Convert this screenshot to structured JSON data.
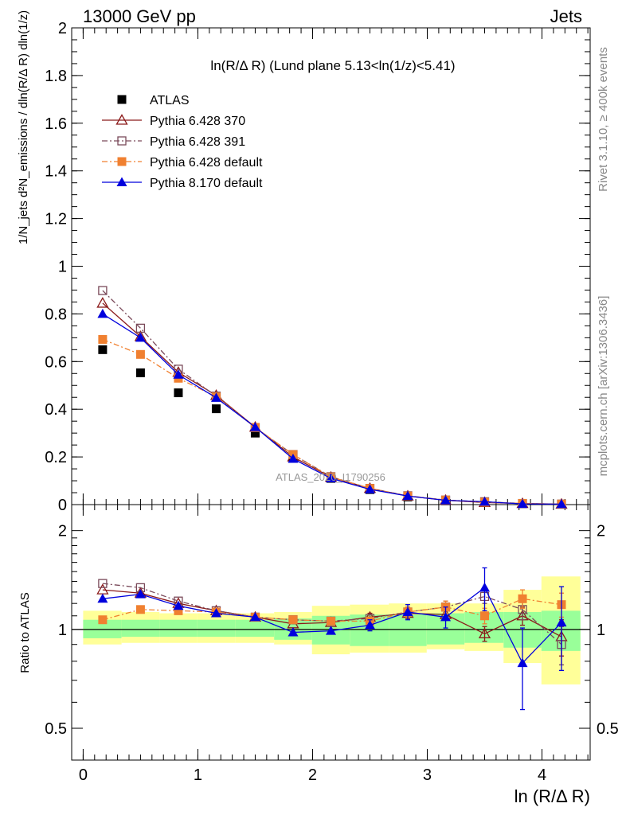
{
  "header": {
    "left": "13000 GeV pp",
    "right": "Jets"
  },
  "side_labels": {
    "top": "Rivet 3.1.10, ≥ 400k events",
    "bottom": "mcplots.cern.ch [arXiv:1306.3436]"
  },
  "watermark": "ATLAS_2020_I1790256",
  "chart_data": [
    {
      "type": "scatter",
      "panel": "main",
      "title": "ln(R/Δ R) (Lund plane 5.13<ln(1/z)<5.41)",
      "ylabel": "1/N_jets d²N_emissions / dln(R/Δ R) dln(1/z)",
      "xlim": [
        -0.1,
        4.42
      ],
      "ylim": [
        0,
        2.0
      ],
      "y_ticks": [
        "0",
        "0.2",
        "0.4",
        "0.6",
        "0.8",
        "1",
        "1.2",
        "1.4",
        "1.6",
        "1.8",
        "2"
      ],
      "x": [
        0.17,
        0.5,
        0.83,
        1.16,
        1.5,
        1.83,
        2.16,
        2.5,
        2.83,
        3.16,
        3.5,
        3.83,
        4.17
      ],
      "legend": "top-left",
      "series": [
        {
          "name": "ATLAS",
          "color": "#000000",
          "marker": "square-filled",
          "line": "none",
          "values": [
            0.65,
            0.553,
            0.469,
            0.402,
            0.3,
            0.195,
            0.11,
            0.063,
            0.032,
            0.016,
            0.009,
            0.004,
            0.002
          ]
        },
        {
          "name": "Pythia 6.428 370",
          "color": "#8b1a1a",
          "marker": "triangle-open",
          "line": "solid",
          "values": [
            0.845,
            0.705,
            0.555,
            0.458,
            0.325,
            0.2,
            0.115,
            0.068,
            0.036,
            0.018,
            0.009,
            0.0045,
            0.0019
          ]
        },
        {
          "name": "Pythia 6.428 391",
          "color": "#7a4a5a",
          "marker": "square-open",
          "line": "dashdot",
          "values": [
            0.898,
            0.74,
            0.568,
            0.455,
            0.323,
            0.21,
            0.117,
            0.068,
            0.037,
            0.019,
            0.012,
            0.0047,
            0.0018
          ]
        },
        {
          "name": "Pythia 6.428 default",
          "color": "#f08030",
          "marker": "square-filled",
          "line": "dashdot",
          "values": [
            0.693,
            0.63,
            0.53,
            0.452,
            0.324,
            0.21,
            0.116,
            0.068,
            0.036,
            0.019,
            0.01,
            0.005,
            0.0024
          ]
        },
        {
          "name": "Pythia 8.170 default",
          "color": "#0000dd",
          "marker": "triangle-filled",
          "line": "solid",
          "values": [
            0.8,
            0.7,
            0.545,
            0.448,
            0.325,
            0.192,
            0.11,
            0.064,
            0.036,
            0.018,
            0.012,
            0.003,
            0.002
          ]
        }
      ]
    },
    {
      "type": "scatter",
      "panel": "ratio",
      "xlabel": "ln (R/Δ R)",
      "ylabel": "Ratio to ATLAS",
      "xlim": [
        -0.1,
        4.42
      ],
      "ylim": [
        0.4,
        2.4
      ],
      "y_scale": "log",
      "y_ticks": [
        "0.5",
        "1",
        "2"
      ],
      "x_ticks": [
        "0",
        "1",
        "2",
        "3",
        "4"
      ],
      "bins": [
        0,
        0.335,
        0.665,
        0.995,
        1.325,
        1.665,
        1.995,
        2.325,
        2.665,
        2.995,
        3.325,
        3.665,
        3.995,
        4.335
      ],
      "band_green": [
        [
          0.94,
          1.07
        ],
        [
          0.95,
          1.07
        ],
        [
          0.95,
          1.07
        ],
        [
          0.95,
          1.07
        ],
        [
          0.95,
          1.07
        ],
        [
          0.93,
          1.08
        ],
        [
          0.9,
          1.1
        ],
        [
          0.89,
          1.11
        ],
        [
          0.89,
          1.11
        ],
        [
          0.9,
          1.12
        ],
        [
          0.91,
          1.13
        ],
        [
          0.88,
          1.13
        ],
        [
          0.86,
          1.14
        ]
      ],
      "band_yellow": [
        [
          0.9,
          1.14
        ],
        [
          0.91,
          1.13
        ],
        [
          0.91,
          1.12
        ],
        [
          0.91,
          1.12
        ],
        [
          0.91,
          1.12
        ],
        [
          0.9,
          1.13
        ],
        [
          0.84,
          1.18
        ],
        [
          0.85,
          1.19
        ],
        [
          0.85,
          1.2
        ],
        [
          0.87,
          1.2
        ],
        [
          0.86,
          1.2
        ],
        [
          0.79,
          1.32
        ],
        [
          0.68,
          1.45
        ]
      ],
      "series": [
        {
          "name": "Pythia 6.428 370",
          "color": "#8b1a1a",
          "marker": "triangle-open",
          "line": "solid",
          "values": [
            1.32,
            1.29,
            1.2,
            1.14,
            1.09,
            1.04,
            1.05,
            1.09,
            1.12,
            1.11,
            0.97,
            1.1,
            0.95
          ],
          "err": [
            0.02,
            0.02,
            0.02,
            0.02,
            0.02,
            0.02,
            0.02,
            0.03,
            0.04,
            0.04,
            0.05,
            0.07,
            0.12
          ]
        },
        {
          "name": "Pythia 6.428 391",
          "color": "#7a4a5a",
          "marker": "square-open",
          "line": "dashdot",
          "values": [
            1.38,
            1.34,
            1.22,
            1.14,
            1.09,
            1.07,
            1.06,
            1.08,
            1.13,
            1.17,
            1.26,
            1.15,
            0.9
          ],
          "err": [
            0.02,
            0.02,
            0.02,
            0.02,
            0.02,
            0.02,
            0.02,
            0.03,
            0.04,
            0.05,
            0.06,
            0.08,
            0.12
          ]
        },
        {
          "name": "Pythia 6.428 default",
          "color": "#f08030",
          "marker": "square-filled",
          "line": "dashdot",
          "values": [
            1.07,
            1.15,
            1.14,
            1.13,
            1.09,
            1.07,
            1.06,
            1.06,
            1.13,
            1.17,
            1.1,
            1.24,
            1.19
          ],
          "err": [
            0.02,
            0.02,
            0.02,
            0.02,
            0.02,
            0.02,
            0.02,
            0.03,
            0.04,
            0.05,
            0.06,
            0.08,
            0.1
          ]
        },
        {
          "name": "Pythia 8.170 default",
          "color": "#0000dd",
          "marker": "triangle-filled",
          "line": "solid",
          "values": [
            1.24,
            1.28,
            1.18,
            1.12,
            1.09,
            0.98,
            0.99,
            1.03,
            1.13,
            1.09,
            1.34,
            0.79,
            1.05
          ],
          "err": [
            0.02,
            0.02,
            0.02,
            0.02,
            0.02,
            0.02,
            0.02,
            0.04,
            0.06,
            0.08,
            0.2,
            0.22,
            0.3
          ]
        }
      ]
    }
  ]
}
